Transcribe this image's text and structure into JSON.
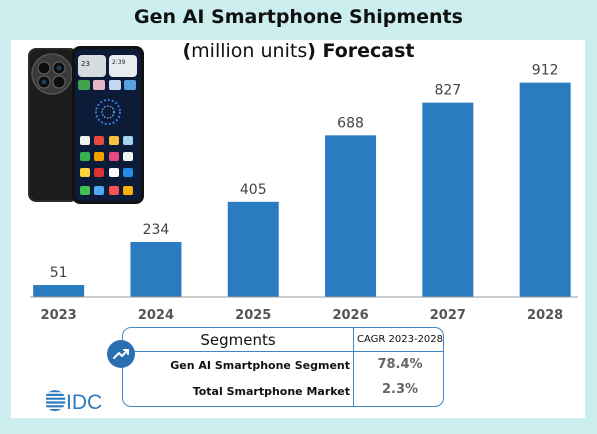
{
  "chart_data": {
    "type": "bar",
    "title_line1": "Gen AI Smartphone Shipments",
    "title_line2_open": "(",
    "title_line2_mid": "million units",
    "title_line2_close": ") Forecast",
    "categories": [
      "2023",
      "2024",
      "2025",
      "2026",
      "2027",
      "2028"
    ],
    "values": [
      51,
      234,
      405,
      688,
      827,
      912
    ],
    "ylim": [
      0,
      1000
    ],
    "bar_color": "#2b7bc0",
    "grid": false,
    "legend": "none"
  },
  "segments_table": {
    "header_left": "Segments",
    "header_right": "CAGR 2023-2028",
    "rows": [
      {
        "label": "Gen AI Smartphone Segment",
        "value": "78.4%"
      },
      {
        "label": "Total Smartphone Market",
        "value": "2.3%"
      }
    ],
    "border_color": "#3f88c5"
  },
  "phone_image": {
    "icon": "smartphone-photo",
    "screen_time": "23",
    "screen_time2": "2:39"
  },
  "logo": {
    "text": "IDC",
    "color": "#2b7bc0",
    "icon": "idc-logo"
  },
  "trend_icon": "trending-up-icon"
}
